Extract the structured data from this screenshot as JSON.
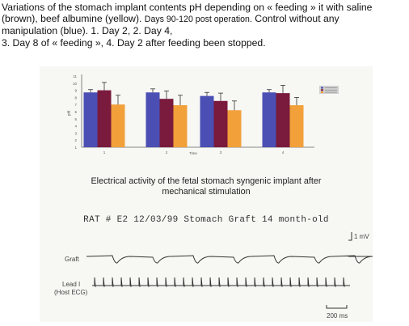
{
  "caption": {
    "line1": "Variations of the stomach implant contents pH depending on « feeding » it with saline",
    "line2": "(brown), beef albumine (yellow).",
    "line2_small": "Days 90-120 post operation.",
    "line2_tail": "Control without any",
    "line3": "manipulation (blue).  1. Day 2,    2. Day 4,",
    "line4": "3. Day 8 of « feeding »,      4. Day 2 after feeding been stopped."
  },
  "chart_data": {
    "type": "bar",
    "categories": [
      "1",
      "2",
      "3",
      "4"
    ],
    "xlabel": "Time",
    "ylabel": "pH",
    "ylim": [
      1,
      11
    ],
    "yticks": [
      "11",
      "10",
      "9",
      "8",
      "7",
      "6",
      "5",
      "4",
      "3",
      "2",
      "1"
    ],
    "series": [
      {
        "color": "#4b4fb4",
        "values": [
          8.7,
          8.7,
          8.2,
          8.7
        ],
        "errors": [
          0.4,
          0.5,
          0.5,
          0.4
        ]
      },
      {
        "color": "#7a1a3c",
        "values": [
          9.0,
          7.8,
          7.5,
          8.6
        ],
        "errors": [
          1.1,
          1.1,
          1.1,
          1.1
        ]
      },
      {
        "color": "#f2a03a",
        "values": [
          7.0,
          6.9,
          6.2,
          6.9
        ],
        "errors": [
          1.3,
          1.4,
          1.3,
          1.1
        ]
      }
    ],
    "legend_position": "right"
  },
  "electrical": {
    "title_line1": "Electrical activity of the fetal stomach syngenic implant after",
    "title_line2": "mechanical stimulation",
    "record_id": "RAT # E2 12/03/99 Stomach Graft 14 month-old",
    "graft_label": "Graft",
    "lead_label": "Lead I",
    "host_label": "(Host ECG)",
    "amplitude_scale": "1 mV",
    "time_scale": "200 ms"
  }
}
